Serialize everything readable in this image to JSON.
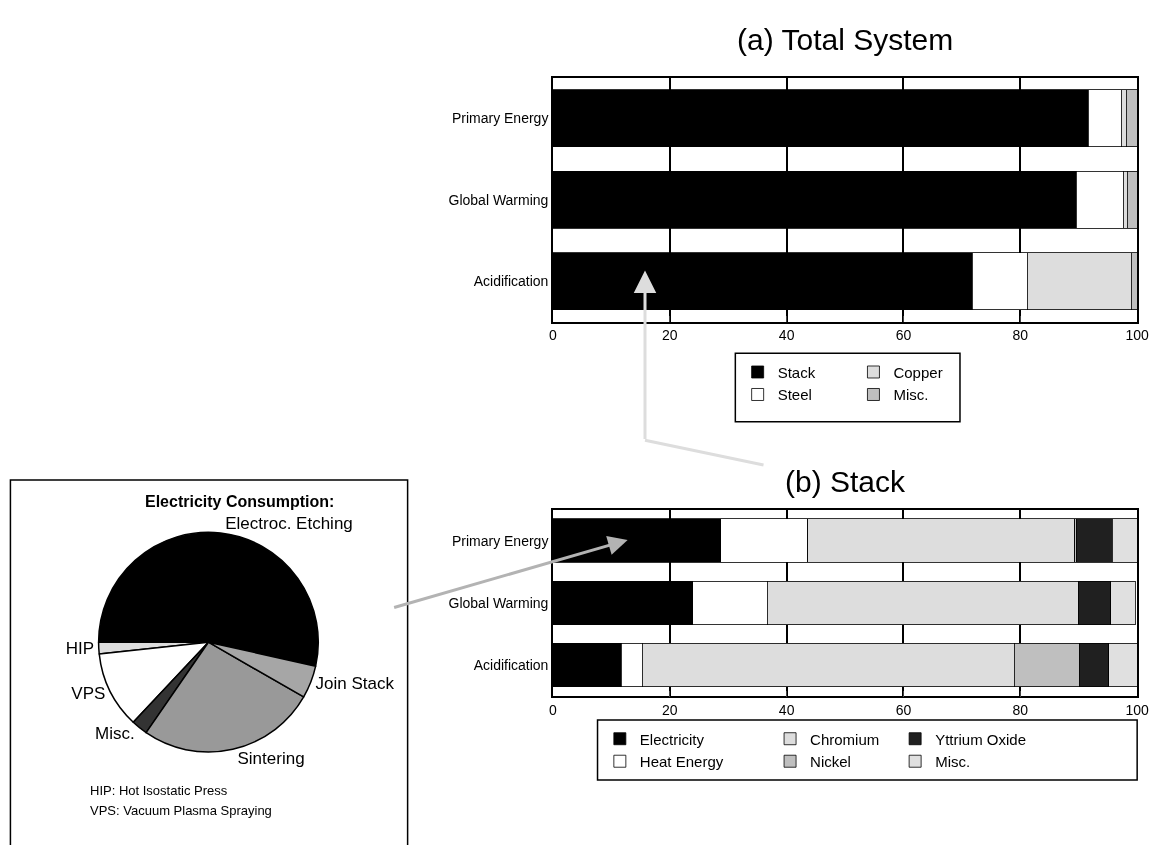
{
  "chart_data": [
    {
      "type": "bar",
      "title": "(a) Total System",
      "orientation": "horizontal",
      "stacked": true,
      "categories": [
        "Primary Energy",
        "Global Warming",
        "Acidification"
      ],
      "series": [
        {
          "name": "Stack",
          "color": "#000000",
          "values": [
            91.6,
            89.6,
            71.8
          ]
        },
        {
          "name": "Steel",
          "color": "#ffffff",
          "values": [
            5.7,
            8.0,
            9.4
          ]
        },
        {
          "name": "Copper",
          "color": "#dddddd",
          "values": [
            0.8,
            0.7,
            17.8
          ]
        },
        {
          "name": "Misc.",
          "color": "#bfbfbf",
          "values": [
            1.9,
            1.7,
            1.0
          ]
        }
      ],
      "xlim": [
        0,
        100
      ],
      "xticks": [
        0,
        20,
        40,
        60,
        80,
        100
      ],
      "grid": "x",
      "legend": "bottom"
    },
    {
      "type": "bar",
      "title": "(b) Stack",
      "orientation": "horizontal",
      "stacked": true,
      "categories": [
        "Primary Energy",
        "Global Warming",
        "Acidification"
      ],
      "series": [
        {
          "name": "Electricity",
          "color": "#000000",
          "values": [
            28.7,
            23.9,
            11.7
          ]
        },
        {
          "name": "Heat Energy",
          "color": "#ffffff",
          "values": [
            14.9,
            12.8,
            3.6
          ]
        },
        {
          "name": "Chromium",
          "color": "#dddddd",
          "values": [
            45.7,
            53.2,
            63.7
          ]
        },
        {
          "name": "Nickel",
          "color": "#bfbfbf",
          "values": [
            0.3,
            null,
            11.1
          ]
        },
        {
          "name": "Yttrium Oxide",
          "color": "#202020",
          "values": [
            6.1,
            5.6,
            5.0
          ]
        },
        {
          "name": "Misc.",
          "color": "#e0e0e0",
          "values": [
            4.3,
            4.2,
            4.9
          ]
        }
      ],
      "xlim": [
        0,
        100
      ],
      "xticks": [
        0,
        20,
        40,
        60,
        80,
        100
      ],
      "grid": "x",
      "legend": "bottom"
    },
    {
      "type": "pie",
      "title": "Electricity Consumption:",
      "categories": [
        "Electroc. Etching",
        "HIP",
        "VPS",
        "Misc.",
        "Sintering",
        "Join Stack"
      ],
      "values": [
        53.5,
        1.7,
        11.3,
        2.4,
        26.3,
        4.8
      ],
      "colors": [
        "#000000",
        "#dddddd",
        "#ffffff",
        "#333333",
        "#999999",
        "#a6a6a6"
      ],
      "annotations": [
        "HIP: Hot Isostatic Press",
        "VPS: Vacuum Plasma Spraying"
      ]
    }
  ]
}
